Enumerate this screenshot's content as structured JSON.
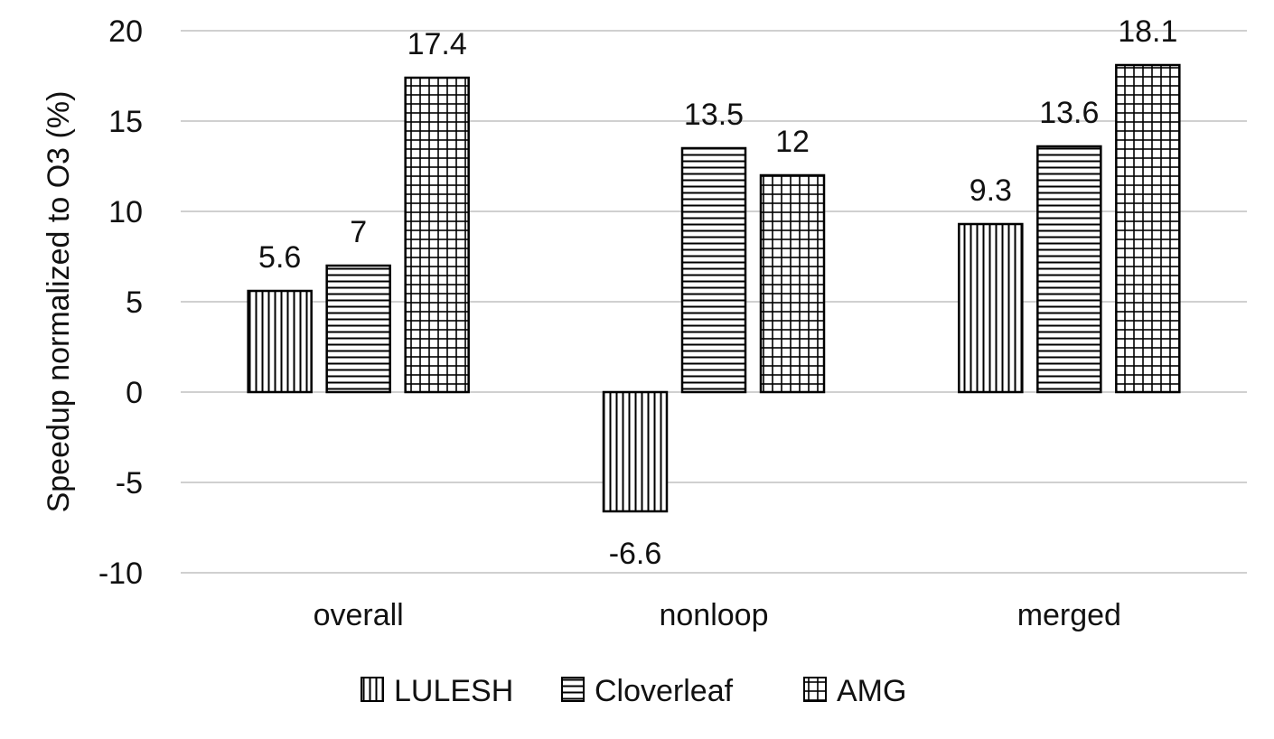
{
  "chart_data": {
    "type": "bar",
    "ylabel": "Speedup normalized to O3 (%)",
    "categories": [
      "overall",
      "nonloop",
      "merged"
    ],
    "yticks": [
      "20",
      "15",
      "10",
      "5",
      "0",
      "-5",
      "-10"
    ],
    "ylim": [
      -10,
      20
    ],
    "grid": true,
    "legend_position": "bottom",
    "series": [
      {
        "name": "LULESH",
        "values": [
          5.6,
          -6.6,
          9.3
        ],
        "labels": [
          "5.6",
          "-6.6",
          "9.3"
        ],
        "pattern": "vertical-lines"
      },
      {
        "name": "Cloverleaf",
        "values": [
          7,
          13.5,
          13.6
        ],
        "labels": [
          "7",
          "13.5",
          "13.6"
        ],
        "pattern": "horizontal-lines"
      },
      {
        "name": "AMG",
        "values": [
          17.4,
          12,
          18.1
        ],
        "labels": [
          "17.4",
          "12",
          "18.1"
        ],
        "pattern": "grid"
      }
    ],
    "colors": {
      "stroke": "#000000",
      "fill": "#ffffff",
      "gridline": "#d0d0d0"
    }
  }
}
